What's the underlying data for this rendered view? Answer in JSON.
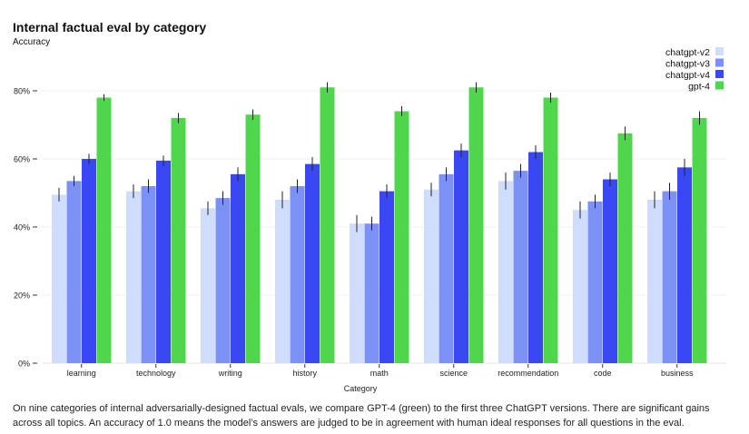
{
  "chart_data": {
    "type": "bar",
    "title": "Internal factual eval by category",
    "ylabel": "Accuracy",
    "xlabel": "Category",
    "ylim": [
      0,
      1.0
    ],
    "yticks": [
      "0%",
      "20%",
      "40%",
      "60%",
      "80%"
    ],
    "ytick_values": [
      0,
      0.2,
      0.4,
      0.6,
      0.8
    ],
    "legend_position": "top-right",
    "categories": [
      "learning",
      "technology",
      "writing",
      "history",
      "math",
      "science",
      "recommendation",
      "code",
      "business"
    ],
    "series": [
      {
        "name": "chatgpt-v2",
        "color": "#cfdcfb",
        "values": [
          0.495,
          0.505,
          0.455,
          0.48,
          0.41,
          0.51,
          0.535,
          0.45,
          0.48
        ],
        "errors": [
          0.02,
          0.02,
          0.02,
          0.025,
          0.025,
          0.02,
          0.025,
          0.025,
          0.025
        ]
      },
      {
        "name": "chatgpt-v3",
        "color": "#7b91f6",
        "values": [
          0.535,
          0.52,
          0.485,
          0.52,
          0.41,
          0.555,
          0.565,
          0.475,
          0.505
        ],
        "errors": [
          0.015,
          0.02,
          0.02,
          0.02,
          0.02,
          0.02,
          0.02,
          0.02,
          0.025
        ]
      },
      {
        "name": "chatgpt-v4",
        "color": "#3a48f2",
        "values": [
          0.6,
          0.595,
          0.555,
          0.585,
          0.505,
          0.625,
          0.62,
          0.54,
          0.575
        ],
        "errors": [
          0.015,
          0.015,
          0.02,
          0.02,
          0.02,
          0.02,
          0.02,
          0.02,
          0.025
        ]
      },
      {
        "name": "gpt-4",
        "color": "#50d64c",
        "values": [
          0.78,
          0.72,
          0.73,
          0.81,
          0.74,
          0.81,
          0.78,
          0.675,
          0.72
        ],
        "errors": [
          0.01,
          0.015,
          0.015,
          0.015,
          0.015,
          0.015,
          0.015,
          0.02,
          0.02
        ]
      }
    ]
  },
  "caption": "On nine categories of internal adversarially-designed factual evals, we compare GPT-4 (green) to the first three ChatGPT versions. There are significant gains across all topics. An accuracy of 1.0 means the model’s answers are judged to be in agreement with human ideal responses for all questions in the eval."
}
